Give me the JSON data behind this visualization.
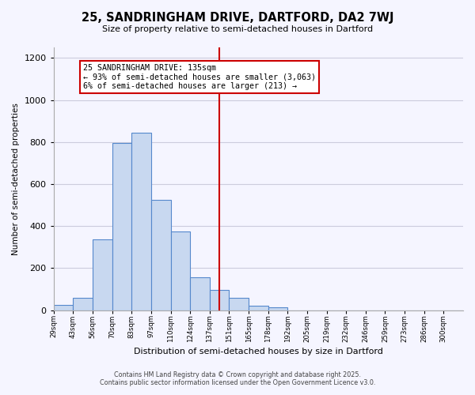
{
  "title_line1": "25, SANDRINGHAM DRIVE, DARTFORD, DA2 7WJ",
  "title_line2": "Size of property relative to semi-detached houses in Dartford",
  "xlabel": "Distribution of semi-detached houses by size in Dartford",
  "ylabel": "Number of semi-detached properties",
  "bin_labels": [
    "29sqm",
    "43sqm",
    "56sqm",
    "70sqm",
    "83sqm",
    "97sqm",
    "110sqm",
    "124sqm",
    "137sqm",
    "151sqm",
    "165sqm",
    "178sqm",
    "192sqm",
    "205sqm",
    "219sqm",
    "232sqm",
    "246sqm",
    "259sqm",
    "273sqm",
    "286sqm",
    "300sqm"
  ],
  "bar_heights": [
    25,
    60,
    335,
    795,
    845,
    525,
    375,
    155,
    95,
    60,
    20,
    15,
    0,
    0,
    0,
    0,
    0,
    0,
    0,
    0,
    0
  ],
  "bar_color": "#c8d8f0",
  "bar_edge_color": "#5588cc",
  "vline_x": 8.5,
  "vline_color": "#cc0000",
  "annotation_line1": "25 SANDRINGHAM DRIVE: 135sqm",
  "annotation_line2": "← 93% of semi-detached houses are smaller (3,063)",
  "annotation_line3": "6% of semi-detached houses are larger (213) →",
  "annotation_box_color": "#ffffff",
  "annotation_box_edge": "#cc0000",
  "ylim": [
    0,
    1250
  ],
  "yticks": [
    0,
    200,
    400,
    600,
    800,
    1000,
    1200
  ],
  "footer_line1": "Contains HM Land Registry data © Crown copyright and database right 2025.",
  "footer_line2": "Contains public sector information licensed under the Open Government Licence v3.0.",
  "background_color": "#f5f5ff",
  "grid_color": "#ccccdd"
}
